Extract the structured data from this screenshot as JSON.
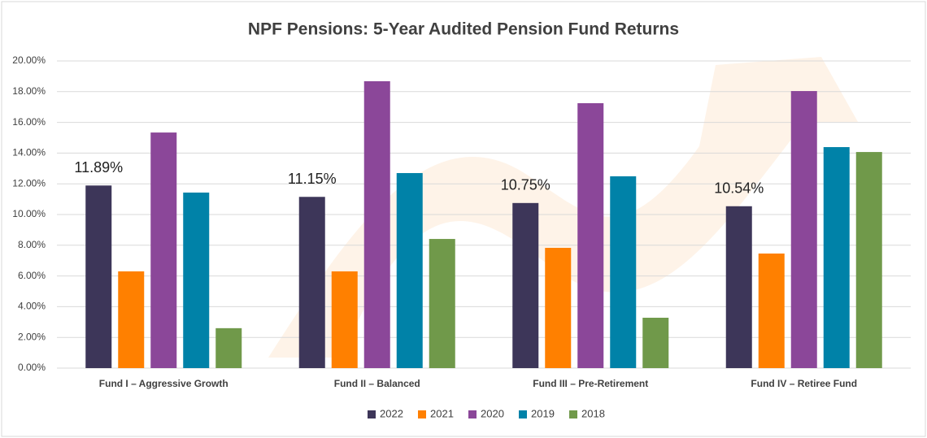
{
  "chart_data": {
    "type": "bar",
    "title": "NPF Pensions: 5-Year Audited Pension Fund Returns",
    "categories": [
      "Fund I – Aggressive Growth",
      "Fund II – Balanced",
      "Fund III – Pre-Retirement",
      "Fund IV – Retiree Fund"
    ],
    "series": [
      {
        "name": "2022",
        "color": "#3d3659",
        "values": [
          11.89,
          11.15,
          10.75,
          10.54
        ],
        "value_labels": [
          "11.89%",
          "11.15%",
          "10.75%",
          "10.54%"
        ]
      },
      {
        "name": "2021",
        "color": "#ff8000",
        "values": [
          6.3,
          6.3,
          7.83,
          7.46
        ]
      },
      {
        "name": "2020",
        "color": "#8b4799",
        "values": [
          15.34,
          18.68,
          17.25,
          18.04
        ]
      },
      {
        "name": "2019",
        "color": "#0082a8",
        "values": [
          11.43,
          12.7,
          12.49,
          14.39
        ]
      },
      {
        "name": "2018",
        "color": "#70994a",
        "values": [
          2.6,
          8.41,
          3.28,
          14.07
        ]
      }
    ],
    "ylim": [
      0,
      20
    ],
    "yticks": [
      {
        "value": 0,
        "label": "0.00%"
      },
      {
        "value": 2,
        "label": "2.00%"
      },
      {
        "value": 4,
        "label": "4.00%"
      },
      {
        "value": 6,
        "label": "6.00%"
      },
      {
        "value": 8,
        "label": "8.00%"
      },
      {
        "value": 10,
        "label": "10.00%"
      },
      {
        "value": 12,
        "label": "12.00%"
      },
      {
        "value": 14,
        "label": "14.00%"
      },
      {
        "value": 16,
        "label": "16.00%"
      },
      {
        "value": 18,
        "label": "18.00%"
      },
      {
        "value": 20,
        "label": "20.00%"
      }
    ],
    "grid": true,
    "legend": "bottom"
  }
}
